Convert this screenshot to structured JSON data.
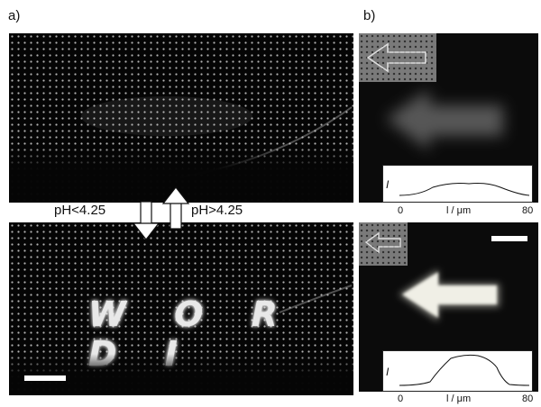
{
  "panel_a": {
    "label": "a)",
    "word": "W O R D I"
  },
  "panel_b": {
    "label": "b)",
    "profile_top": {
      "y_label": "I",
      "x_start": "0",
      "x_label": "l / μm",
      "x_end": "80"
    },
    "profile_bottom": {
      "y_label": "I",
      "x_start": "0",
      "x_label": "l / μm",
      "x_end": "80"
    }
  },
  "arrows": {
    "down_label": "pH<4.25",
    "up_label": "pH>4.25"
  }
}
